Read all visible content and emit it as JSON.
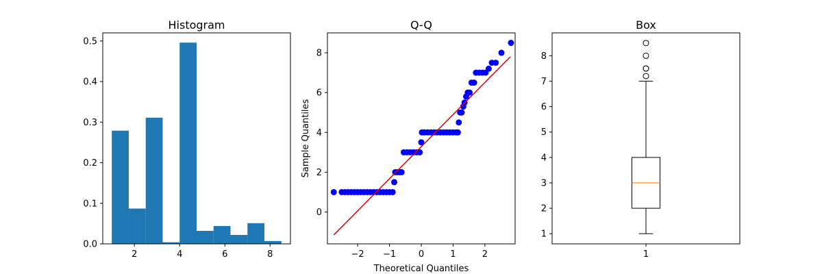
{
  "chart_data": [
    {
      "type": "bar",
      "title": "Histogram",
      "xlabel": "",
      "ylabel": "",
      "xlim": [
        0.6,
        8.9
      ],
      "ylim": [
        0,
        0.52
      ],
      "xticks": [
        2,
        4,
        6,
        8
      ],
      "yticks": [
        0.0,
        0.1,
        0.2,
        0.3,
        0.4,
        0.5
      ],
      "ytick_labels": [
        "0.0",
        "0.1",
        "0.2",
        "0.3",
        "0.4",
        "0.5"
      ],
      "bin_edges": [
        1.0,
        1.75,
        2.5,
        3.25,
        4.0,
        4.75,
        5.5,
        6.25,
        7.0,
        7.75,
        8.5
      ],
      "values": [
        0.279,
        0.087,
        0.311,
        0.004,
        0.496,
        0.032,
        0.044,
        0.022,
        0.051,
        0.007
      ],
      "color": "#1f77b4"
    },
    {
      "type": "scatter",
      "title": "Q-Q",
      "xlabel": "Theoretical Quantiles",
      "ylabel": "Sample Quantiles",
      "xlim": [
        -2.95,
        2.95
      ],
      "ylim": [
        -1.6,
        9.0
      ],
      "xticks": [
        -2,
        -1,
        0,
        1,
        2
      ],
      "xtick_labels": [
        "−2",
        "−1",
        "0",
        "1",
        "2"
      ],
      "yticks": [
        0,
        2,
        4,
        6,
        8
      ],
      "points": [
        [
          -2.75,
          1.0
        ],
        [
          -2.5,
          1.0
        ],
        [
          -2.4,
          1.0
        ],
        [
          -2.3,
          1.0
        ],
        [
          -2.2,
          1.0
        ],
        [
          -2.1,
          1.0
        ],
        [
          -2.0,
          1.0
        ],
        [
          -1.9,
          1.0
        ],
        [
          -1.8,
          1.0
        ],
        [
          -1.7,
          1.0
        ],
        [
          -1.6,
          1.0
        ],
        [
          -1.5,
          1.0
        ],
        [
          -1.4,
          1.0
        ],
        [
          -1.3,
          1.0
        ],
        [
          -1.2,
          1.0
        ],
        [
          -1.1,
          1.0
        ],
        [
          -1.0,
          1.0
        ],
        [
          -0.9,
          1.0
        ],
        [
          -0.85,
          1.5
        ],
        [
          -0.82,
          2.0
        ],
        [
          -0.75,
          2.0
        ],
        [
          -0.68,
          2.0
        ],
        [
          -0.62,
          2.0
        ],
        [
          -0.55,
          3.0
        ],
        [
          -0.45,
          3.0
        ],
        [
          -0.35,
          3.0
        ],
        [
          -0.25,
          3.0
        ],
        [
          -0.15,
          3.0
        ],
        [
          -0.05,
          3.0
        ],
        [
          0.0,
          3.5
        ],
        [
          0.02,
          4.0
        ],
        [
          0.1,
          4.0
        ],
        [
          0.2,
          4.0
        ],
        [
          0.3,
          4.0
        ],
        [
          0.4,
          4.0
        ],
        [
          0.5,
          4.0
        ],
        [
          0.6,
          4.0
        ],
        [
          0.7,
          4.0
        ],
        [
          0.8,
          4.0
        ],
        [
          0.9,
          4.0
        ],
        [
          1.0,
          4.0
        ],
        [
          1.1,
          4.0
        ],
        [
          1.15,
          4.0
        ],
        [
          1.18,
          4.5
        ],
        [
          1.22,
          5.0
        ],
        [
          1.27,
          5.0
        ],
        [
          1.32,
          5.3
        ],
        [
          1.36,
          5.5
        ],
        [
          1.41,
          5.8
        ],
        [
          1.46,
          6.0
        ],
        [
          1.52,
          6.0
        ],
        [
          1.58,
          6.5
        ],
        [
          1.66,
          6.5
        ],
        [
          1.72,
          7.0
        ],
        [
          1.82,
          7.0
        ],
        [
          1.92,
          7.0
        ],
        [
          2.02,
          7.0
        ],
        [
          2.12,
          7.2
        ],
        [
          2.22,
          7.5
        ],
        [
          2.34,
          7.5
        ],
        [
          2.52,
          8.0
        ],
        [
          2.82,
          8.5
        ]
      ],
      "fit_line": [
        [
          -2.75,
          -1.15
        ],
        [
          2.8,
          7.8
        ]
      ],
      "point_color": "#0000ff",
      "line_color": "#dd0000"
    },
    {
      "type": "box",
      "title": "Box",
      "xlabel": "",
      "ylabel": "",
      "xlim": [
        0.5,
        1.5
      ],
      "ylim": [
        0.6,
        8.9
      ],
      "xticks": [
        1
      ],
      "xtick_labels": [
        "1"
      ],
      "yticks": [
        1,
        2,
        3,
        4,
        5,
        6,
        7,
        8
      ],
      "box": {
        "position": 1,
        "whisker_low": 1.0,
        "q1": 2.0,
        "median": 3.0,
        "q3": 4.0,
        "whisker_high": 7.0
      },
      "outliers": [
        7.2,
        7.5,
        7.5,
        8.0,
        8.5
      ],
      "median_color": "#ff7f0e"
    }
  ]
}
